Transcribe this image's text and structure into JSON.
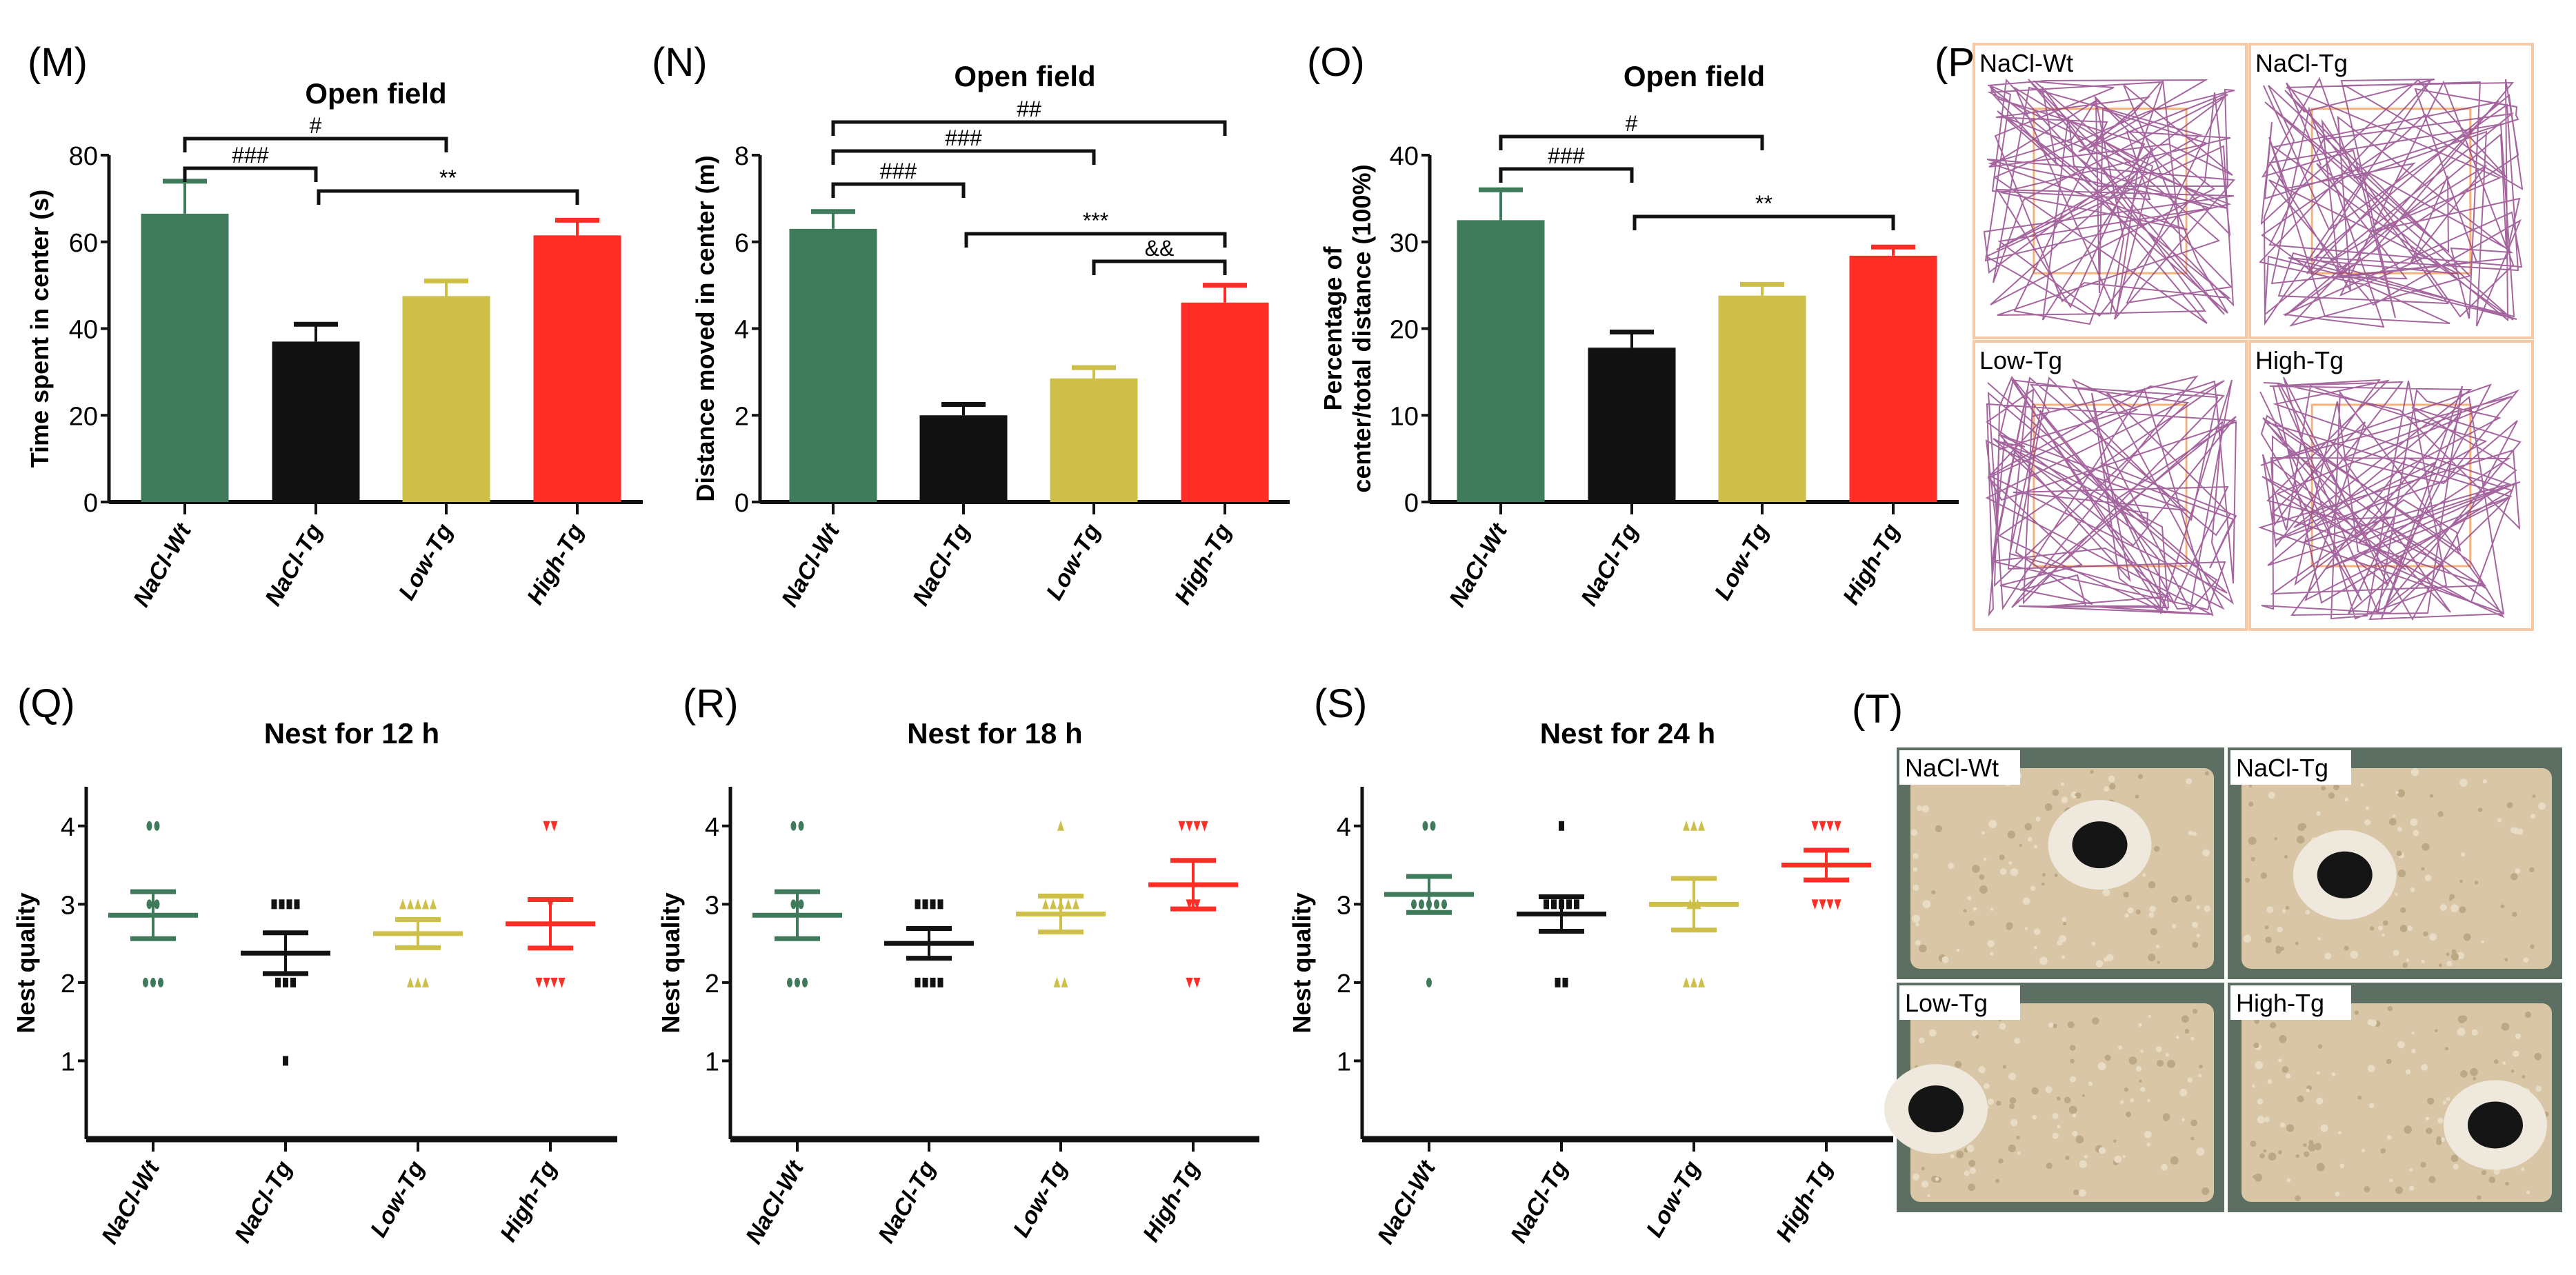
{
  "colors": {
    "NaCl-Wt": "#3f7a5a",
    "NaCl-Tg": "#121212",
    "Low-Tg": "#cdbf48",
    "High-Tg": "#ff2d26"
  },
  "chart_data": [
    {
      "id": "M",
      "panel": "(M)",
      "type": "bar",
      "title": "Open field",
      "ylabel": "Time spent in center (s)",
      "categories": [
        "NaCl-Wt",
        "NaCl-Tg",
        "Low-Tg",
        "High-Tg"
      ],
      "values": [
        66.5,
        37,
        47.5,
        61.5
      ],
      "errors": [
        7.5,
        4,
        3.5,
        3.5
      ],
      "ylim": [
        0,
        80
      ],
      "yticks": [
        "0",
        "20",
        "40",
        "60",
        "80"
      ],
      "significance": [
        {
          "from": 0,
          "to": 2,
          "label": "#"
        },
        {
          "from": 0,
          "to": 1,
          "label": "###"
        },
        {
          "from": 1,
          "to": 3,
          "label": "**"
        }
      ]
    },
    {
      "id": "N",
      "panel": "(N)",
      "type": "bar",
      "title": "Open field",
      "ylabel": "Distance moved in center (m)",
      "categories": [
        "NaCl-Wt",
        "NaCl-Tg",
        "Low-Tg",
        "High-Tg"
      ],
      "values": [
        6.3,
        2.0,
        2.85,
        4.6
      ],
      "errors": [
        0.4,
        0.25,
        0.25,
        0.4
      ],
      "ylim": [
        0,
        8
      ],
      "yticks": [
        "0",
        "2",
        "4",
        "6",
        "8"
      ],
      "significance": [
        {
          "from": 0,
          "to": 3,
          "label": "##"
        },
        {
          "from": 0,
          "to": 2,
          "label": "###"
        },
        {
          "from": 0,
          "to": 1,
          "label": "###"
        },
        {
          "from": 1,
          "to": 3,
          "label": "***"
        },
        {
          "from": 2,
          "to": 3,
          "label": "&&"
        }
      ]
    },
    {
      "id": "O",
      "panel": "(O)",
      "type": "bar",
      "title": "Open field",
      "ylabel": [
        "Percentage of",
        "center/total distance (100%)"
      ],
      "categories": [
        "NaCl-Wt",
        "NaCl-Tg",
        "Low-Tg",
        "High-Tg"
      ],
      "values": [
        32.5,
        17.8,
        23.8,
        28.4
      ],
      "errors": [
        3.5,
        1.8,
        1.3,
        1.0
      ],
      "ylim": [
        0,
        40
      ],
      "yticks": [
        "0",
        "10",
        "20",
        "30",
        "40"
      ],
      "significance": [
        {
          "from": 0,
          "to": 2,
          "label": "#"
        },
        {
          "from": 0,
          "to": 1,
          "label": "###"
        },
        {
          "from": 1,
          "to": 3,
          "label": "**"
        }
      ]
    },
    {
      "id": "Q",
      "panel": "(Q)",
      "type": "scatter",
      "title": "Nest for 12 h",
      "ylabel": "Nest quality",
      "categories": [
        "NaCl-Wt",
        "NaCl-Tg",
        "Low-Tg",
        "High-Tg"
      ],
      "ylim": [
        0,
        4.5
      ],
      "yticks": [
        "1",
        "2",
        "3",
        "4"
      ],
      "points": [
        [
          4,
          4,
          3,
          3,
          2,
          2,
          2
        ],
        [
          3,
          3,
          3,
          3,
          2,
          2,
          2,
          1
        ],
        [
          3,
          3,
          3,
          3,
          3,
          2,
          2,
          2
        ],
        [
          4,
          4,
          3,
          2,
          2,
          2,
          2
        ]
      ],
      "means": [
        2.86,
        2.375,
        2.625,
        2.75
      ],
      "sem": [
        0.3,
        0.26,
        0.18,
        0.31
      ]
    },
    {
      "id": "R",
      "panel": "(R)",
      "type": "scatter",
      "title": "Nest for 18 h",
      "ylabel": "Nest quality",
      "categories": [
        "NaCl-Wt",
        "NaCl-Tg",
        "Low-Tg",
        "High-Tg"
      ],
      "ylim": [
        0,
        4.5
      ],
      "yticks": [
        "1",
        "2",
        "3",
        "4"
      ],
      "points": [
        [
          4,
          4,
          3,
          3,
          2,
          2,
          2
        ],
        [
          3,
          3,
          3,
          3,
          2,
          2,
          2,
          2
        ],
        [
          4,
          3,
          3,
          3,
          3,
          3,
          2,
          2
        ],
        [
          4,
          4,
          4,
          4,
          3,
          3,
          2,
          2
        ]
      ],
      "means": [
        2.86,
        2.5,
        2.875,
        3.25
      ],
      "sem": [
        0.3,
        0.19,
        0.23,
        0.31
      ]
    },
    {
      "id": "S",
      "panel": "(S)",
      "type": "scatter",
      "title": "Nest for 24 h",
      "ylabel": "Nest quality",
      "categories": [
        "NaCl-Wt",
        "NaCl-Tg",
        "Low-Tg",
        "High-Tg"
      ],
      "ylim": [
        0,
        4.5
      ],
      "yticks": [
        "1",
        "2",
        "3",
        "4"
      ],
      "points": [
        [
          4,
          4,
          3,
          3,
          3,
          3,
          3,
          2
        ],
        [
          4,
          3,
          3,
          3,
          3,
          3,
          2,
          2
        ],
        [
          4,
          4,
          4,
          3,
          3,
          2,
          2,
          2
        ],
        [
          4,
          4,
          4,
          4,
          3,
          3,
          3,
          3
        ]
      ],
      "means": [
        3.125,
        2.875,
        3.0,
        3.5
      ],
      "sem": [
        0.23,
        0.22,
        0.33,
        0.19
      ]
    }
  ],
  "panel_p": {
    "label": "(P)",
    "tracks": [
      "NaCl-Wt",
      "NaCl-Tg",
      "Low-Tg",
      "High-Tg"
    ]
  },
  "panel_t": {
    "label": "(T)",
    "photos": [
      "NaCl-Wt",
      "NaCl-Tg",
      "Low-Tg",
      "High-Tg"
    ]
  }
}
